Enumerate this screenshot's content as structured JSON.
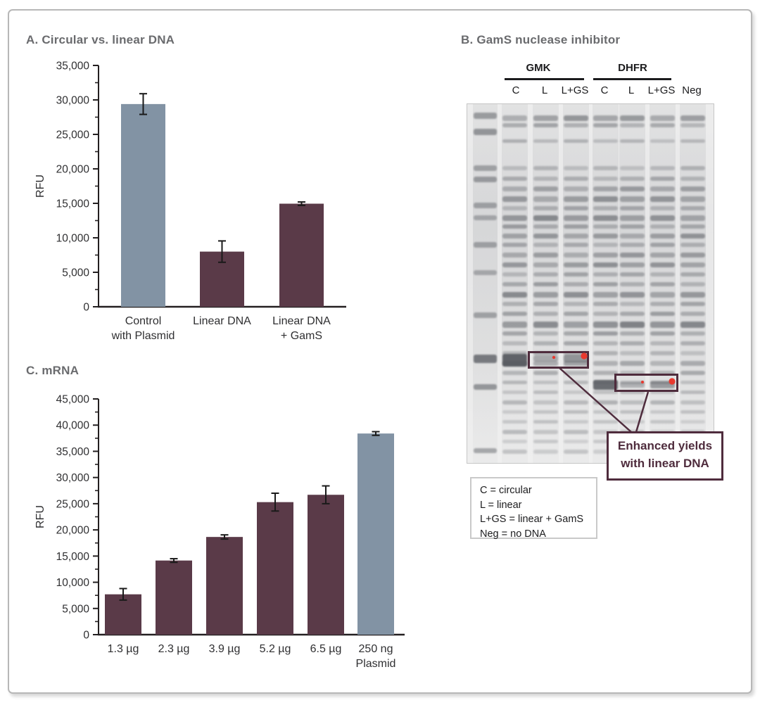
{
  "colors": {
    "accent_blue": "#8293a4",
    "accent_maroon": "#5a3a48",
    "annotation_maroon": "#4f2c3d",
    "red_dot": "#e8392f",
    "title_gray": "#6a6b6e",
    "axis_black": "#231f20"
  },
  "panel_b": {
    "title": "B. GamS nuclease inhibitor",
    "groups": [
      "GMK",
      "DHFR"
    ],
    "lane_labels": [
      "C",
      "L",
      "L+GS",
      "C",
      "L",
      "L+GS",
      "Neg"
    ],
    "callout_line1": "Enhanced yields",
    "callout_line2": "with linear DNA",
    "legend": [
      "C = circular",
      "L = linear",
      "L+GS = linear + GamS",
      "Neg = no DNA"
    ]
  },
  "chart_data": [
    {
      "type": "bar",
      "title": "A. Circular vs. linear DNA",
      "categories": [
        "Control\nwith Plasmid",
        "Linear DNA",
        "Linear DNA\n+ GamS"
      ],
      "values": [
        29400,
        8000,
        14950
      ],
      "errors": [
        1500,
        1550,
        250
      ],
      "bar_colors": [
        "#8293a4",
        "#5a3a48",
        "#5a3a48"
      ],
      "xlabel": "",
      "ylabel": "RFU",
      "ylim": [
        0,
        35000
      ],
      "tick_step": 5000,
      "minor_tick_step": 2500,
      "grid": false,
      "legend_position": "none"
    },
    {
      "type": "bar",
      "title": "C. mRNA",
      "categories": [
        "1.3 µg",
        "2.3 µg",
        "3.9 µg",
        "5.2 µg",
        "6.5 µg",
        "250 ng\nPlasmid"
      ],
      "values": [
        7700,
        14150,
        18650,
        25300,
        26700,
        38400
      ],
      "errors": [
        1100,
        350,
        400,
        1700,
        1700,
        350
      ],
      "bar_colors": [
        "#5a3a48",
        "#5a3a48",
        "#5a3a48",
        "#5a3a48",
        "#5a3a48",
        "#8293a4"
      ],
      "xlabel": "",
      "ylabel": "RFU",
      "ylim": [
        0,
        45000
      ],
      "tick_step": 5000,
      "minor_tick_step": 2500,
      "grid": false,
      "legend_position": "none"
    }
  ]
}
